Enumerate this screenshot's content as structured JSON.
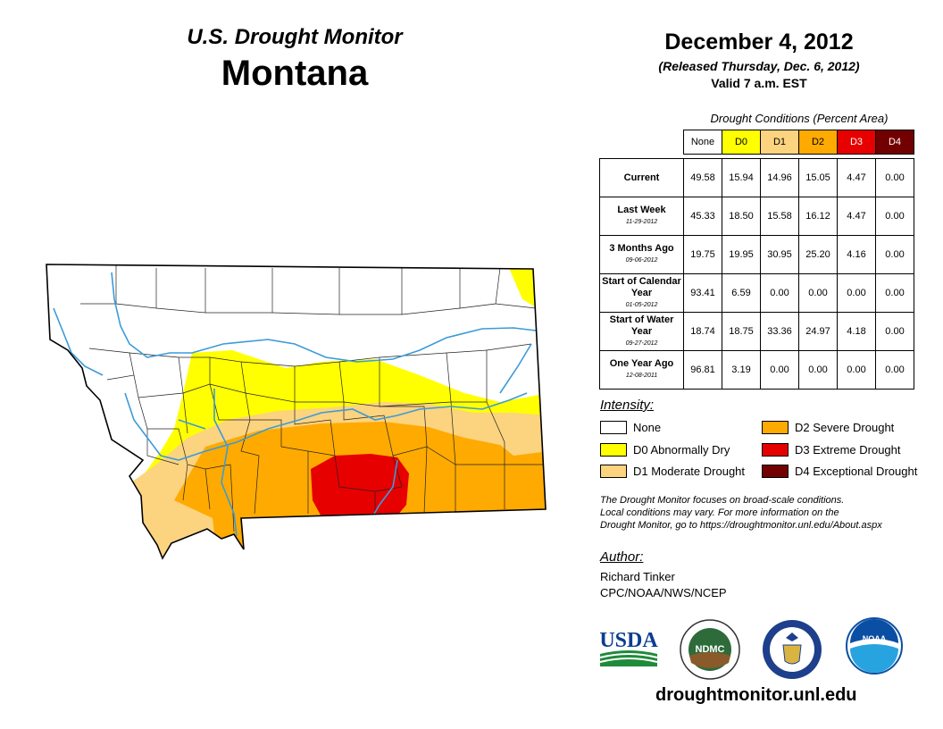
{
  "header": {
    "monitor_title": "U.S. Drought Monitor",
    "state": "Montana",
    "map_date": "December 4, 2012",
    "release": "(Released Thursday, Dec. 6, 2012)",
    "valid": "Valid 7 a.m. EST"
  },
  "table": {
    "caption": "Drought Conditions (Percent Area)",
    "columns": [
      {
        "label": "None",
        "bg": "#ffffff",
        "fg": "#000000"
      },
      {
        "label": "D0",
        "bg": "#ffff00",
        "fg": "#000000"
      },
      {
        "label": "D1",
        "bg": "#fcd37f",
        "fg": "#000000"
      },
      {
        "label": "D2",
        "bg": "#ffaa00",
        "fg": "#000000"
      },
      {
        "label": "D3",
        "bg": "#e60000",
        "fg": "#ffffff"
      },
      {
        "label": "D4",
        "bg": "#730000",
        "fg": "#ffffff"
      }
    ],
    "rows": [
      {
        "label": "Current",
        "date": "",
        "values": [
          "49.58",
          "15.94",
          "14.96",
          "15.05",
          "4.47",
          "0.00"
        ]
      },
      {
        "label": "Last Week",
        "date": "11-29-2012",
        "values": [
          "45.33",
          "18.50",
          "15.58",
          "16.12",
          "4.47",
          "0.00"
        ]
      },
      {
        "label": "3 Months Ago",
        "date": "09-06-2012",
        "values": [
          "19.75",
          "19.95",
          "30.95",
          "25.20",
          "4.16",
          "0.00"
        ]
      },
      {
        "label": "Start of Calendar Year",
        "date": "01-05-2012",
        "values": [
          "93.41",
          "6.59",
          "0.00",
          "0.00",
          "0.00",
          "0.00"
        ]
      },
      {
        "label": "Start of Water Year",
        "date": "09-27-2012",
        "values": [
          "18.74",
          "18.75",
          "33.36",
          "24.97",
          "4.18",
          "0.00"
        ]
      },
      {
        "label": "One Year Ago",
        "date": "12-08-2011",
        "values": [
          "96.81",
          "3.19",
          "0.00",
          "0.00",
          "0.00",
          "0.00"
        ]
      }
    ]
  },
  "legend": {
    "title": "Intensity:",
    "items": [
      {
        "label": "None",
        "color": "#ffffff"
      },
      {
        "label": "D0 Abnormally Dry",
        "color": "#ffff00"
      },
      {
        "label": "D1 Moderate Drought",
        "color": "#fcd37f"
      },
      {
        "label": "D2 Severe Drought",
        "color": "#ffaa00"
      },
      {
        "label": "D3 Extreme Drought",
        "color": "#e60000"
      },
      {
        "label": "D4 Exceptional Drought",
        "color": "#730000"
      }
    ]
  },
  "note": {
    "line1": "The Drought Monitor focuses on broad-scale conditions.",
    "line2": "Local conditions may vary. For more information on the",
    "line3": "Drought Monitor, go to https://droughtmonitor.unl.edu/About.aspx"
  },
  "author": {
    "title": "Author:",
    "name": "Richard Tinker",
    "org": "CPC/NOAA/NWS/NCEP"
  },
  "logos": {
    "usda": "USDA",
    "ndmc": "NDMC",
    "noaa": "NOAA"
  },
  "website": "droughtmonitor.unl.edu",
  "map_colors": {
    "none": "#ffffff",
    "d0": "#ffff00",
    "d1": "#fcd37f",
    "d2": "#ffaa00",
    "d3": "#e60000",
    "river": "#3b9bd8",
    "border": "#000000"
  }
}
